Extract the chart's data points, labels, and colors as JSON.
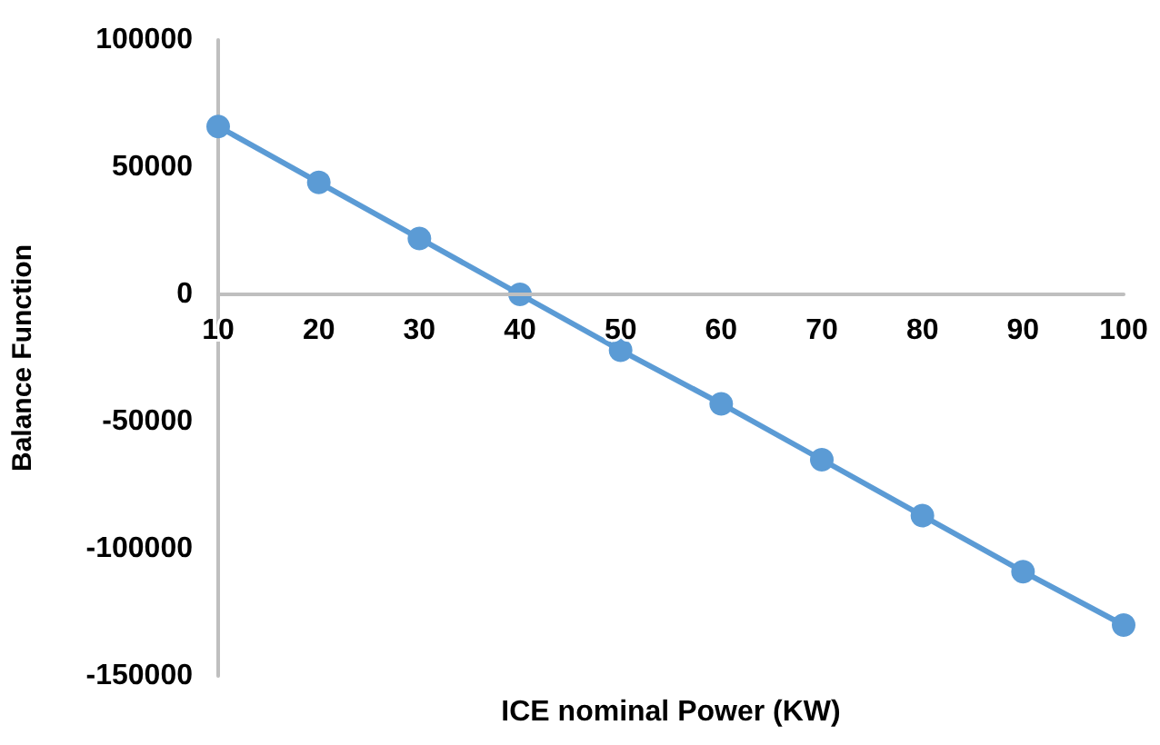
{
  "chart_data": {
    "type": "line",
    "xlabel": "ICE nominal Power (KW)",
    "ylabel": "Balance Function",
    "categories": [
      "10",
      "20",
      "30",
      "40",
      "50",
      "60",
      "70",
      "80",
      "90",
      "100"
    ],
    "series": [
      {
        "color": "#5b9bd5",
        "values": [
          66000,
          44000,
          22000,
          0,
          -22000,
          -43000,
          -65000,
          -87000,
          -109000,
          -130000
        ]
      }
    ],
    "ylim": [
      -150000,
      100000
    ],
    "yticks": [
      -150000,
      -100000,
      -50000,
      0,
      50000,
      100000
    ],
    "grid": false,
    "marker": "circle",
    "line_style": "solid"
  }
}
